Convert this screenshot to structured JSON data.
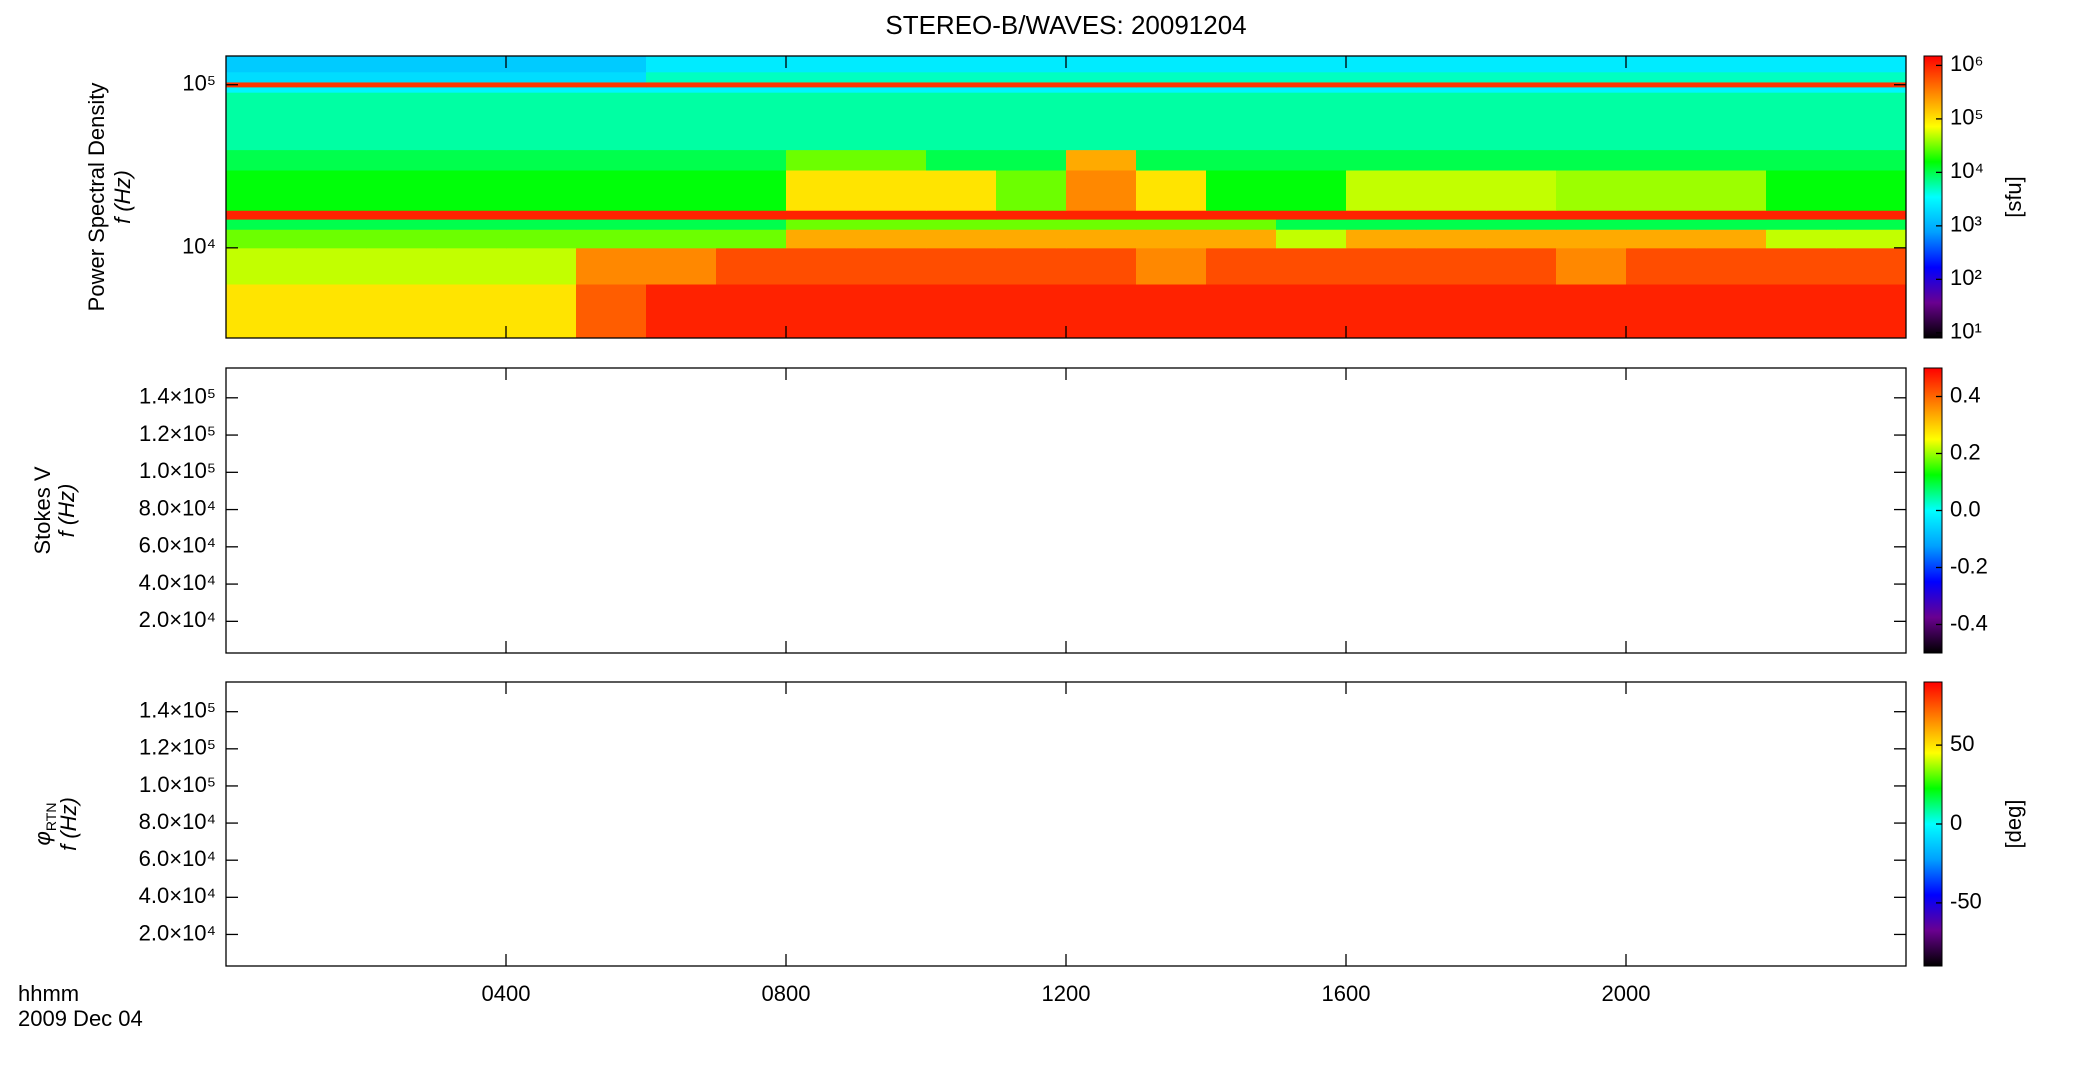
{
  "chart_data": [
    {
      "type": "heatmap",
      "title": "STEREO-B/WAVES: 20091204",
      "ylabel": [
        "Power Spectral Density",
        "f (Hz)"
      ],
      "ylim": [
        2800,
        150000
      ],
      "ylog": true,
      "yticks": [
        {
          "value": 10000,
          "label": "10⁴"
        },
        {
          "value": 100000,
          "label": "10⁵"
        }
      ],
      "x_edges": [
        0,
        1,
        2,
        3,
        4,
        5,
        6,
        7,
        8,
        9,
        10,
        11,
        12,
        13,
        14,
        15,
        16,
        17,
        18,
        19,
        20,
        21,
        22,
        23,
        24
      ],
      "y_edges": [
        2800,
        6000,
        10000,
        13000,
        15000,
        17000,
        30000,
        40000,
        90000,
        97000,
        104000,
        120000,
        150000
      ],
      "z": [
        [
          100000,
          100000,
          100000,
          100000,
          100000,
          500000,
          1000000,
          1000000,
          1000000,
          1000000,
          1000000,
          1000000,
          1000000,
          1000000,
          1000000,
          1000000,
          1000000,
          1000000,
          1000000,
          1000000,
          1000000,
          1000000,
          1000000,
          1000000
        ],
        [
          50000,
          50000,
          50000,
          50000,
          50000,
          300000,
          300000,
          600000,
          600000,
          600000,
          600000,
          600000,
          600000,
          300000,
          600000,
          600000,
          600000,
          600000,
          600000,
          300000,
          600000,
          600000,
          600000,
          600000
        ],
        [
          30000,
          30000,
          30000,
          30000,
          30000,
          30000,
          30000,
          30000,
          200000,
          200000,
          200000,
          200000,
          200000,
          200000,
          200000,
          50000,
          200000,
          200000,
          200000,
          200000,
          200000,
          200000,
          50000,
          50000
        ],
        [
          10000,
          10000,
          10000,
          10000,
          10000,
          10000,
          10000,
          10000,
          30000,
          30000,
          30000,
          30000,
          30000,
          30000,
          30000,
          10000,
          10000,
          10000,
          10000,
          10000,
          10000,
          10000,
          10000,
          10000
        ],
        [
          1000000,
          1000000,
          1000000,
          1000000,
          1000000,
          1000000,
          1000000,
          1000000,
          1000000,
          1000000,
          1000000,
          1000000,
          1000000,
          1000000,
          1000000,
          1000000,
          1000000,
          1000000,
          1000000,
          1000000,
          1000000,
          1000000,
          1000000,
          1000000
        ],
        [
          15000,
          15000,
          15000,
          15000,
          15000,
          15000,
          15000,
          15000,
          100000,
          100000,
          100000,
          30000,
          300000,
          100000,
          15000,
          15000,
          50000,
          50000,
          50000,
          40000,
          40000,
          40000,
          15000,
          15000
        ],
        [
          10000,
          10000,
          10000,
          10000,
          10000,
          10000,
          10000,
          10000,
          30000,
          30000,
          10000,
          10000,
          200000,
          10000,
          10000,
          10000,
          10000,
          10000,
          10000,
          10000,
          10000,
          10000,
          10000,
          10000
        ],
        [
          6000,
          6000,
          6000,
          6000,
          6000,
          6000,
          6000,
          6000,
          6000,
          6000,
          6000,
          6000,
          6000,
          6000,
          6000,
          6000,
          6000,
          6000,
          6000,
          6000,
          6000,
          6000,
          6000,
          6000
        ],
        [
          3000,
          3000,
          3000,
          3000,
          3000,
          3000,
          3000,
          3000,
          3000,
          3000,
          3000,
          3000,
          3000,
          3000,
          3000,
          3000,
          3000,
          3000,
          3000,
          3000,
          3000,
          3000,
          3000,
          3000
        ],
        [
          800000,
          800000,
          800000,
          800000,
          800000,
          800000,
          800000,
          800000,
          800000,
          800000,
          800000,
          800000,
          800000,
          800000,
          800000,
          800000,
          800000,
          800000,
          800000,
          800000,
          800000,
          800000,
          800000,
          800000
        ],
        [
          2000,
          2000,
          2000,
          2000,
          2000,
          2000,
          5000,
          5000,
          5000,
          5000,
          5000,
          5000,
          5000,
          5000,
          5000,
          5000,
          5000,
          5000,
          5000,
          5000,
          5000,
          5000,
          5000,
          5000
        ],
        [
          1500,
          1500,
          1500,
          1500,
          1500,
          1500,
          2500,
          2500,
          2500,
          2500,
          2500,
          2500,
          2500,
          2500,
          2500,
          2500,
          2500,
          2500,
          2500,
          2500,
          2500,
          2500,
          2500,
          2500
        ]
      ],
      "clim": [
        8,
        1500000
      ],
      "clog": true,
      "cticks": [
        {
          "value": 10,
          "label": "10¹"
        },
        {
          "value": 100,
          "label": "10²"
        },
        {
          "value": 1000,
          "label": "10³"
        },
        {
          "value": 10000,
          "label": "10⁴"
        },
        {
          "value": 100000,
          "label": "10⁵"
        },
        {
          "value": 1000000,
          "label": "10⁶"
        }
      ],
      "clabel": "[sfu]",
      "colormap": [
        "#000000",
        "#6a0090",
        "#0000ff",
        "#00a0ff",
        "#00ffff",
        "#00ff00",
        "#ffff00",
        "#ff8000",
        "#ff0000"
      ]
    },
    {
      "type": "heatmap",
      "ylabel": [
        "Stokes V",
        "f (Hz)"
      ],
      "ylim": [
        3000,
        156000
      ],
      "yticks": [
        {
          "value": 20000,
          "label": "2.0×10⁴"
        },
        {
          "value": 40000,
          "label": "4.0×10⁴"
        },
        {
          "value": 60000,
          "label": "6.0×10⁴"
        },
        {
          "value": 80000,
          "label": "8.0×10⁴"
        },
        {
          "value": 100000,
          "label": "1.0×10⁵"
        },
        {
          "value": 120000,
          "label": "1.2×10⁵"
        },
        {
          "value": 140000,
          "label": "1.4×10⁵"
        }
      ],
      "clim": [
        -0.5,
        0.5
      ],
      "cticks": [
        -0.4,
        -0.2,
        {
          "value": 0,
          "label": "0.0"
        },
        0.2,
        0.4
      ]
    },
    {
      "type": "heatmap",
      "ylabel_symbol": "φ",
      "ylabel_subscript": "RTN",
      "ylabel_unit": "f (Hz)",
      "ylim": [
        3000,
        156000
      ],
      "yticks": [
        {
          "value": 20000,
          "label": "2.0×10⁴"
        },
        {
          "value": 40000,
          "label": "4.0×10⁴"
        },
        {
          "value": 60000,
          "label": "6.0×10⁴"
        },
        {
          "value": 80000,
          "label": "8.0×10⁴"
        },
        {
          "value": 100000,
          "label": "1.0×10⁵"
        },
        {
          "value": 120000,
          "label": "1.2×10⁵"
        },
        {
          "value": 140000,
          "label": "1.4×10⁵"
        }
      ],
      "clim": [
        -90,
        90
      ],
      "cticks": [
        -50,
        0,
        50
      ],
      "clabel": "[deg]",
      "xlim": [
        0,
        24
      ],
      "xticks": [
        {
          "value": 4,
          "label": "0400"
        },
        {
          "value": 8,
          "label": "0800"
        },
        {
          "value": 12,
          "label": "1200"
        },
        {
          "value": 16,
          "label": "1600"
        },
        {
          "value": 20,
          "label": "2000"
        }
      ],
      "xlabel": "hhmm",
      "date": "2009 Dec 04"
    }
  ]
}
